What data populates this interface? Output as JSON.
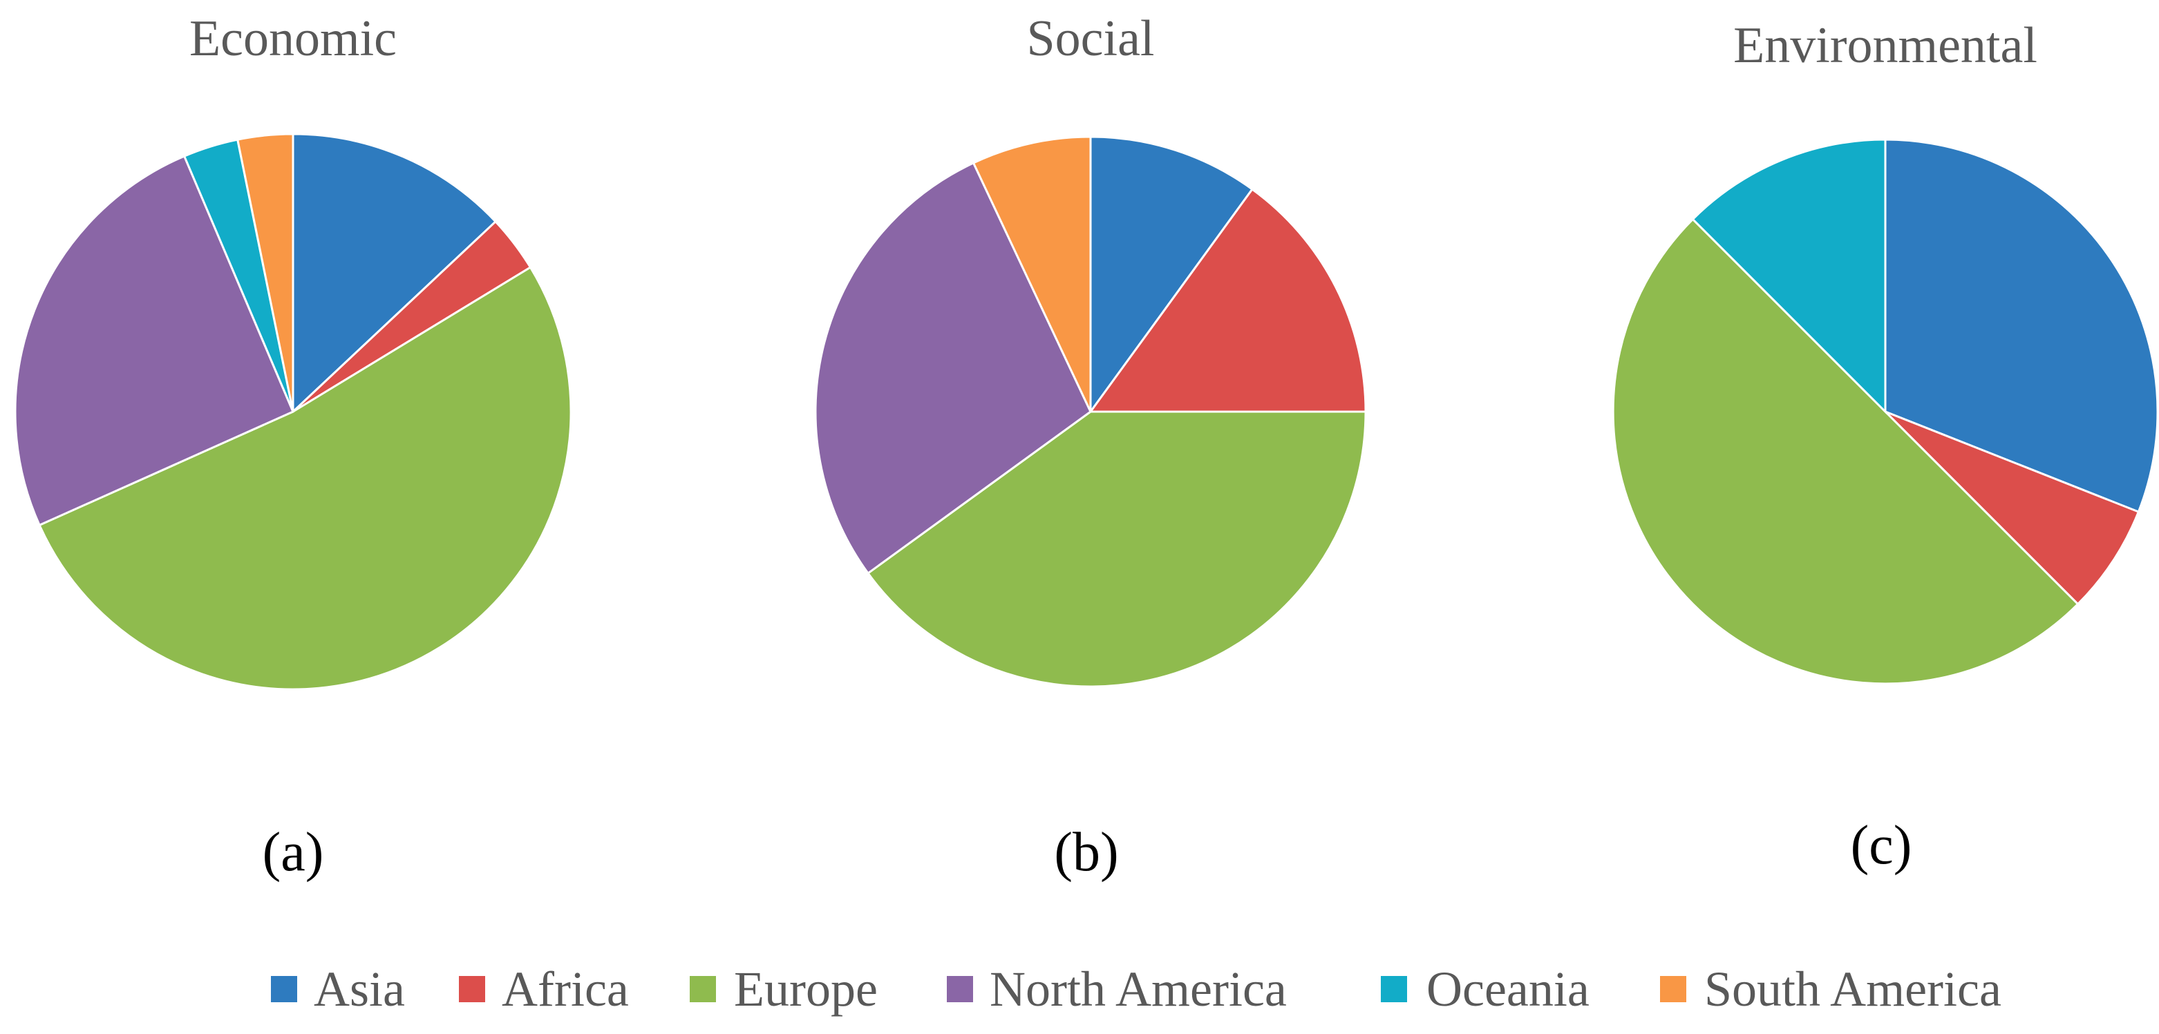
{
  "chart_data": [
    {
      "type": "pie",
      "title": "Economic",
      "panel_label": "(a)",
      "series": [
        {
          "name": "Asia",
          "value": 13.0
        },
        {
          "name": "Africa",
          "value": 3.3
        },
        {
          "name": "Europe",
          "value": 52.0
        },
        {
          "name": "North America",
          "value": 25.3
        },
        {
          "name": "Oceania",
          "value": 3.2
        },
        {
          "name": "South America",
          "value": 3.2
        }
      ]
    },
    {
      "type": "pie",
      "title": "Social",
      "panel_label": "(b)",
      "series": [
        {
          "name": "Asia",
          "value": 10.0
        },
        {
          "name": "Africa",
          "value": 15.0
        },
        {
          "name": "Europe",
          "value": 40.0
        },
        {
          "name": "North America",
          "value": 28.0
        },
        {
          "name": "Oceania",
          "value": 0
        },
        {
          "name": "South America",
          "value": 7.0
        }
      ]
    },
    {
      "type": "pie",
      "title": "Environmental",
      "panel_label": "(c)",
      "series": [
        {
          "name": "Asia",
          "value": 31.0
        },
        {
          "name": "Africa",
          "value": 6.5
        },
        {
          "name": "Europe",
          "value": 50.0
        },
        {
          "name": "North America",
          "value": 0
        },
        {
          "name": "Oceania",
          "value": 12.5
        },
        {
          "name": "South America",
          "value": 0
        }
      ]
    }
  ],
  "legend": {
    "placement": "bottom",
    "items": [
      {
        "name": "Asia",
        "color": "#2e7bbf"
      },
      {
        "name": "Africa",
        "color": "#dc4e4b"
      },
      {
        "name": "Europe",
        "color": "#8fbb4e"
      },
      {
        "name": "North America",
        "color": "#8a66a6"
      },
      {
        "name": "Oceania",
        "color": "#12acc8"
      },
      {
        "name": "South America",
        "color": "#f99745"
      }
    ]
  }
}
